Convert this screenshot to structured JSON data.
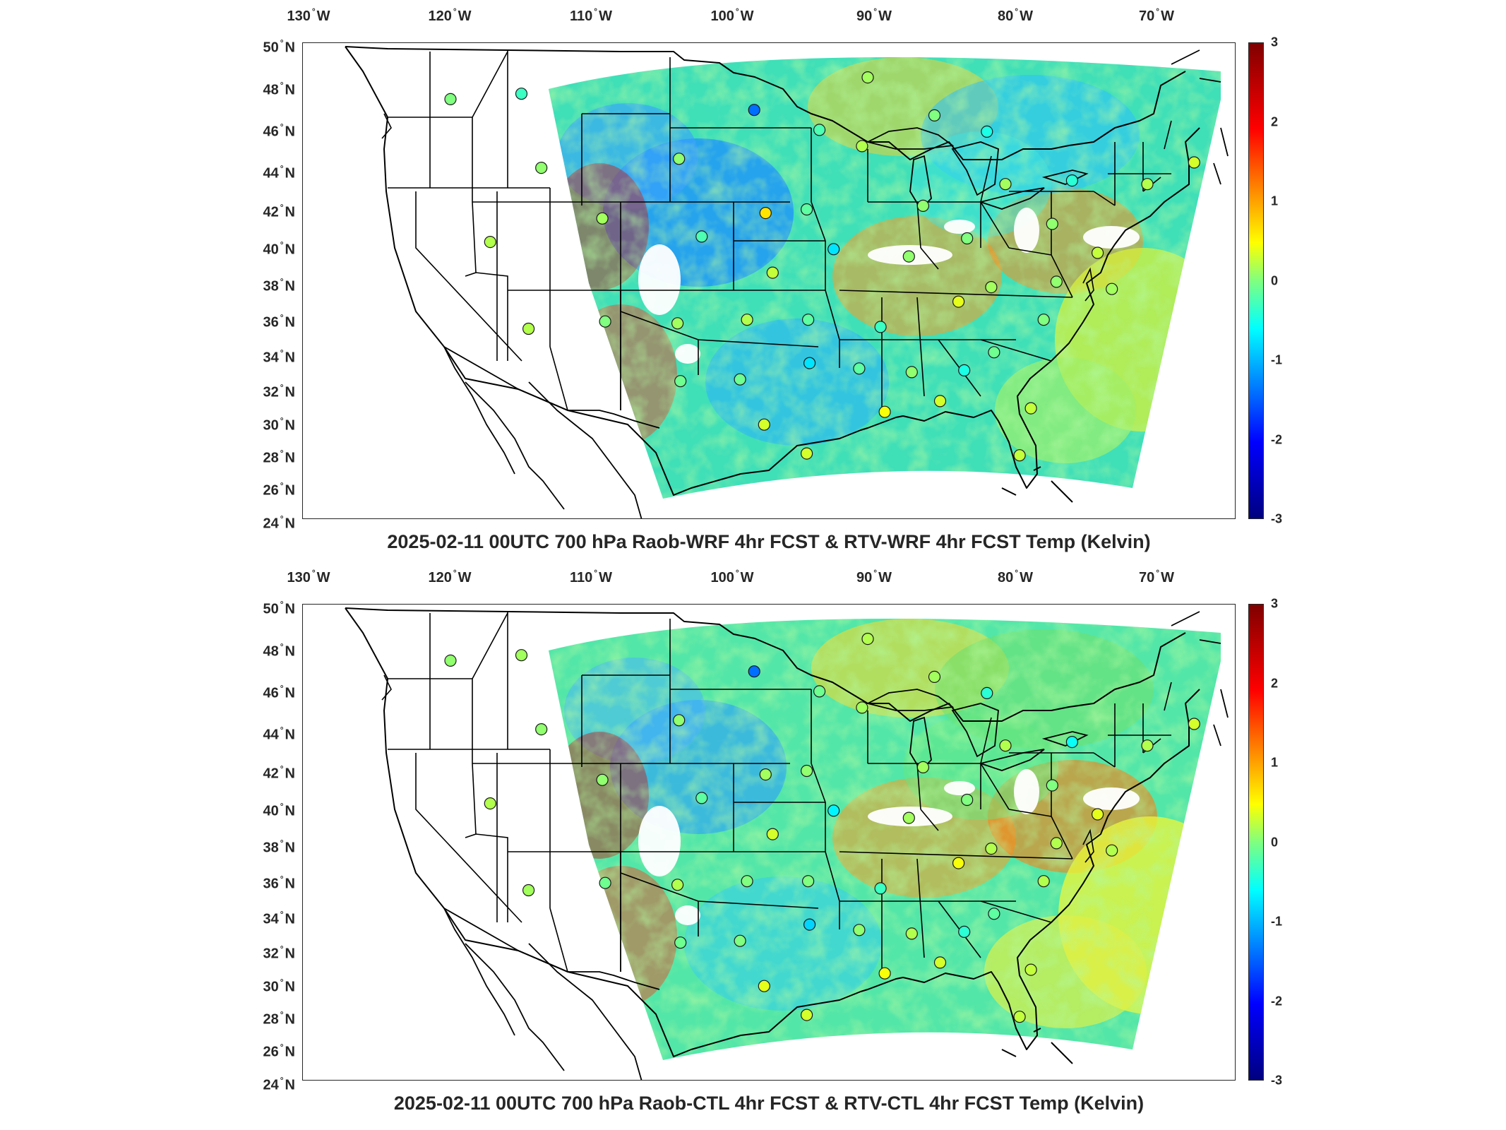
{
  "panels": [
    {
      "id": "top",
      "title": "2025-02-11 00UTC 700 hPa Raob-WRF 4hr FCST & RTV-WRF 4hr FCST Temp (Kelvin)"
    },
    {
      "id": "bottom",
      "title": "2025-02-11 00UTC 700 hPa Raob-CTL 4hr FCST & RTV-CTL 4hr FCST Temp (Kelvin)"
    }
  ],
  "lon_axis": {
    "labels": [
      {
        "value": "130",
        "suffix": "W"
      },
      {
        "value": "120",
        "suffix": "W"
      },
      {
        "value": "110",
        "suffix": "W"
      },
      {
        "value": "100",
        "suffix": "W"
      },
      {
        "value": "90",
        "suffix": "W"
      },
      {
        "value": "80",
        "suffix": "W"
      },
      {
        "value": "70",
        "suffix": "W"
      }
    ]
  },
  "lat_axis": {
    "labels": [
      {
        "value": "50",
        "suffix": "N"
      },
      {
        "value": "48",
        "suffix": "N"
      },
      {
        "value": "46",
        "suffix": "N"
      },
      {
        "value": "44",
        "suffix": "N"
      },
      {
        "value": "42",
        "suffix": "N"
      },
      {
        "value": "40",
        "suffix": "N"
      },
      {
        "value": "38",
        "suffix": "N"
      },
      {
        "value": "36",
        "suffix": "N"
      },
      {
        "value": "34",
        "suffix": "N"
      },
      {
        "value": "32",
        "suffix": "N"
      },
      {
        "value": "30",
        "suffix": "N"
      },
      {
        "value": "28",
        "suffix": "N"
      },
      {
        "value": "26",
        "suffix": "N"
      },
      {
        "value": "24",
        "suffix": "N"
      }
    ]
  },
  "colorbar": {
    "ticks": [
      "3",
      "2",
      "1",
      "0",
      "-1",
      "-2",
      "-3"
    ],
    "range": [
      -3,
      3
    ],
    "colors": [
      "#00007f",
      "#0000ff",
      "#007fff",
      "#00ffff",
      "#80ff80",
      "#ffff00",
      "#ff7f00",
      "#ff0000",
      "#7f0000"
    ]
  },
  "raob_stations": {
    "top": [
      {
        "lon": -122.6,
        "lat": 47.4,
        "v": 0.0
      },
      {
        "lon": -117.6,
        "lat": 47.7,
        "v": -0.4
      },
      {
        "lon": -101.2,
        "lat": 46.8,
        "v": -1.6
      },
      {
        "lon": -96.6,
        "lat": 45.7,
        "v": -0.3
      },
      {
        "lon": -93.2,
        "lat": 48.6,
        "v": 0.2
      },
      {
        "lon": -88.5,
        "lat": 46.5,
        "v": 0.0
      },
      {
        "lon": -84.8,
        "lat": 45.6,
        "v": -0.6
      },
      {
        "lon": -83.5,
        "lat": 42.7,
        "v": 0.2
      },
      {
        "lon": -78.8,
        "lat": 42.9,
        "v": -0.5
      },
      {
        "lon": -73.5,
        "lat": 42.7,
        "v": 0.3
      },
      {
        "lon": -70.2,
        "lat": 43.9,
        "v": 0.5
      },
      {
        "lon": -116.2,
        "lat": 43.6,
        "v": 0.1
      },
      {
        "lon": -106.5,
        "lat": 44.1,
        "v": 0.1
      },
      {
        "lon": -100.4,
        "lat": 41.1,
        "v": 0.9
      },
      {
        "lon": -97.5,
        "lat": 41.3,
        "v": -0.2
      },
      {
        "lon": -93.6,
        "lat": 44.8,
        "v": 0.3
      },
      {
        "lon": -89.3,
        "lat": 41.5,
        "v": 0.1
      },
      {
        "lon": -86.2,
        "lat": 39.7,
        "v": 0.0
      },
      {
        "lon": -80.2,
        "lat": 40.5,
        "v": 0.1
      },
      {
        "lon": -77.0,
        "lat": 38.9,
        "v": 0.4
      },
      {
        "lon": -119.8,
        "lat": 39.5,
        "v": 0.3
      },
      {
        "lon": -111.9,
        "lat": 40.8,
        "v": 0.2
      },
      {
        "lon": -104.9,
        "lat": 39.8,
        "v": -0.3
      },
      {
        "lon": -99.9,
        "lat": 37.8,
        "v": 0.4
      },
      {
        "lon": -95.6,
        "lat": 39.1,
        "v": -0.9
      },
      {
        "lon": -90.3,
        "lat": 38.7,
        "v": 0.1
      },
      {
        "lon": -84.5,
        "lat": 37.0,
        "v": 0.2
      },
      {
        "lon": -79.9,
        "lat": 37.3,
        "v": 0.1
      },
      {
        "lon": -76.0,
        "lat": 36.9,
        "v": 0.2
      },
      {
        "lon": -117.1,
        "lat": 34.7,
        "v": 0.3
      },
      {
        "lon": -111.7,
        "lat": 35.1,
        "v": 0.0
      },
      {
        "lon": -106.6,
        "lat": 35.0,
        "v": 0.2
      },
      {
        "lon": -101.7,
        "lat": 35.2,
        "v": 0.3
      },
      {
        "lon": -97.4,
        "lat": 35.2,
        "v": -0.2
      },
      {
        "lon": -92.3,
        "lat": 34.8,
        "v": -0.4
      },
      {
        "lon": -86.8,
        "lat": 36.2,
        "v": 0.6
      },
      {
        "lon": -80.8,
        "lat": 35.2,
        "v": 0.0
      },
      {
        "lon": -106.4,
        "lat": 31.8,
        "v": -0.1
      },
      {
        "lon": -102.2,
        "lat": 31.9,
        "v": -0.1
      },
      {
        "lon": -97.3,
        "lat": 32.8,
        "v": -0.9
      },
      {
        "lon": -93.8,
        "lat": 32.5,
        "v": -0.2
      },
      {
        "lon": -90.1,
        "lat": 32.3,
        "v": 0.1
      },
      {
        "lon": -86.4,
        "lat": 32.4,
        "v": -0.6
      },
      {
        "lon": -84.3,
        "lat": 33.4,
        "v": -0.1
      },
      {
        "lon": -81.7,
        "lat": 30.3,
        "v": 0.4
      },
      {
        "lon": -82.5,
        "lat": 27.7,
        "v": 0.4
      },
      {
        "lon": -97.5,
        "lat": 27.8,
        "v": 0.5
      },
      {
        "lon": -100.5,
        "lat": 29.4,
        "v": 0.5
      },
      {
        "lon": -92.0,
        "lat": 30.1,
        "v": 0.7
      },
      {
        "lon": -88.1,
        "lat": 30.7,
        "v": 0.5
      }
    ],
    "bottom": [
      {
        "lon": -122.6,
        "lat": 47.4,
        "v": 0.1
      },
      {
        "lon": -117.6,
        "lat": 47.7,
        "v": 0.2
      },
      {
        "lon": -101.2,
        "lat": 46.8,
        "v": -1.6
      },
      {
        "lon": -96.6,
        "lat": 45.7,
        "v": -0.1
      },
      {
        "lon": -93.2,
        "lat": 48.6,
        "v": 0.3
      },
      {
        "lon": -88.5,
        "lat": 46.5,
        "v": 0.2
      },
      {
        "lon": -84.8,
        "lat": 45.6,
        "v": -0.5
      },
      {
        "lon": -83.5,
        "lat": 42.7,
        "v": 0.3
      },
      {
        "lon": -78.8,
        "lat": 42.9,
        "v": -0.7
      },
      {
        "lon": -73.5,
        "lat": 42.7,
        "v": 0.3
      },
      {
        "lon": -70.2,
        "lat": 43.9,
        "v": 0.5
      },
      {
        "lon": -116.2,
        "lat": 43.6,
        "v": 0.1
      },
      {
        "lon": -106.5,
        "lat": 44.1,
        "v": 0.1
      },
      {
        "lon": -100.4,
        "lat": 41.1,
        "v": 0.2
      },
      {
        "lon": -97.5,
        "lat": 41.3,
        "v": 0.1
      },
      {
        "lon": -93.6,
        "lat": 44.8,
        "v": 0.2
      },
      {
        "lon": -89.3,
        "lat": 41.5,
        "v": 0.2
      },
      {
        "lon": -86.2,
        "lat": 39.7,
        "v": 0.0
      },
      {
        "lon": -80.2,
        "lat": 40.5,
        "v": 0.0
      },
      {
        "lon": -77.0,
        "lat": 38.9,
        "v": 0.6
      },
      {
        "lon": -119.8,
        "lat": 39.5,
        "v": 0.3
      },
      {
        "lon": -111.9,
        "lat": 40.8,
        "v": 0.1
      },
      {
        "lon": -104.9,
        "lat": 39.8,
        "v": -0.2
      },
      {
        "lon": -99.9,
        "lat": 37.8,
        "v": 0.5
      },
      {
        "lon": -95.6,
        "lat": 39.1,
        "v": -0.8
      },
      {
        "lon": -90.3,
        "lat": 38.7,
        "v": 0.2
      },
      {
        "lon": -84.5,
        "lat": 37.0,
        "v": 0.3
      },
      {
        "lon": -79.9,
        "lat": 37.3,
        "v": 0.3
      },
      {
        "lon": -76.0,
        "lat": 36.9,
        "v": 0.3
      },
      {
        "lon": -117.1,
        "lat": 34.7,
        "v": 0.2
      },
      {
        "lon": -111.7,
        "lat": 35.1,
        "v": -0.1
      },
      {
        "lon": -106.6,
        "lat": 35.0,
        "v": 0.3
      },
      {
        "lon": -101.7,
        "lat": 35.2,
        "v": 0.0
      },
      {
        "lon": -97.4,
        "lat": 35.2,
        "v": 0.0
      },
      {
        "lon": -92.3,
        "lat": 34.8,
        "v": -0.4
      },
      {
        "lon": -86.8,
        "lat": 36.2,
        "v": 0.7
      },
      {
        "lon": -80.8,
        "lat": 35.2,
        "v": 0.3
      },
      {
        "lon": -106.4,
        "lat": 31.8,
        "v": -0.1
      },
      {
        "lon": -102.2,
        "lat": 31.9,
        "v": 0.0
      },
      {
        "lon": -97.3,
        "lat": 32.8,
        "v": -1.0
      },
      {
        "lon": -93.8,
        "lat": 32.5,
        "v": 0.1
      },
      {
        "lon": -90.1,
        "lat": 32.3,
        "v": 0.3
      },
      {
        "lon": -86.4,
        "lat": 32.4,
        "v": -0.5
      },
      {
        "lon": -84.3,
        "lat": 33.4,
        "v": -0.2
      },
      {
        "lon": -81.7,
        "lat": 30.3,
        "v": 0.4
      },
      {
        "lon": -82.5,
        "lat": 27.7,
        "v": 0.4
      },
      {
        "lon": -97.5,
        "lat": 27.8,
        "v": 0.5
      },
      {
        "lon": -100.5,
        "lat": 29.4,
        "v": 0.6
      },
      {
        "lon": -92.0,
        "lat": 30.1,
        "v": 0.7
      },
      {
        "lon": -88.1,
        "lat": 30.7,
        "v": 0.5
      }
    ]
  }
}
